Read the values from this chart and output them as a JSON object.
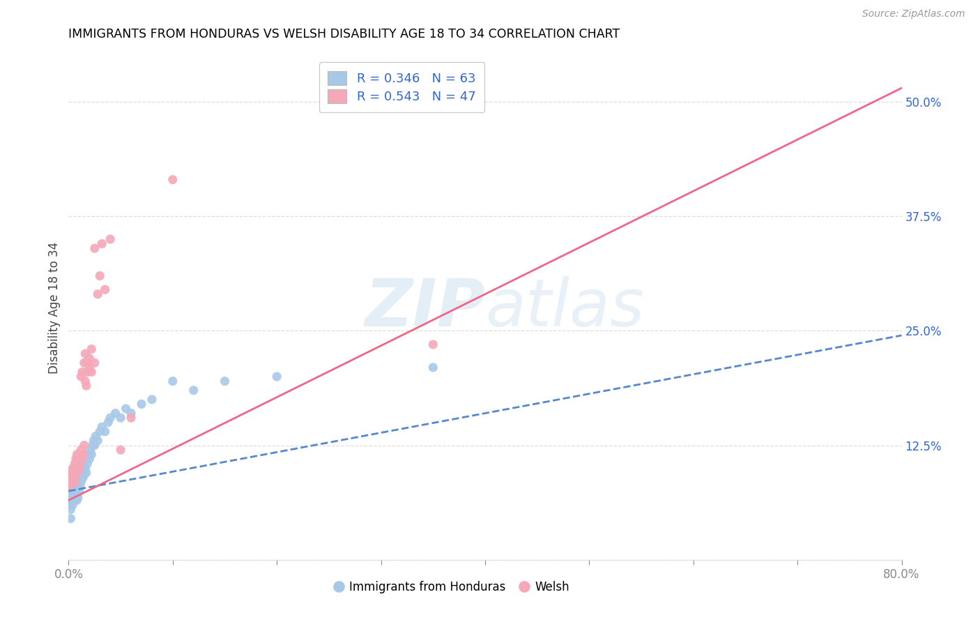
{
  "title": "IMMIGRANTS FROM HONDURAS VS WELSH DISABILITY AGE 18 TO 34 CORRELATION CHART",
  "source": "Source: ZipAtlas.com",
  "ylabel": "Disability Age 18 to 34",
  "xmin": 0.0,
  "xmax": 0.8,
  "ymin": 0.0,
  "ymax": 0.55,
  "ytick_vals": [
    0.0,
    0.125,
    0.25,
    0.375,
    0.5
  ],
  "ytick_labels": [
    "",
    "12.5%",
    "25.0%",
    "37.5%",
    "50.0%"
  ],
  "blue_R": 0.346,
  "blue_N": 63,
  "pink_R": 0.543,
  "pink_N": 47,
  "blue_color": "#a8c8e8",
  "pink_color": "#f4a8b8",
  "blue_line_color": "#5588cc",
  "pink_line_color": "#ee6688",
  "legend_color": "#3366cc",
  "blue_line_x": [
    0.0,
    0.8
  ],
  "blue_line_y": [
    0.075,
    0.245
  ],
  "pink_line_x": [
    0.0,
    0.8
  ],
  "pink_line_y": [
    0.065,
    0.515
  ],
  "blue_scatter_x": [
    0.001,
    0.002,
    0.002,
    0.003,
    0.003,
    0.004,
    0.004,
    0.004,
    0.005,
    0.005,
    0.005,
    0.006,
    0.006,
    0.006,
    0.007,
    0.007,
    0.007,
    0.008,
    0.008,
    0.008,
    0.009,
    0.009,
    0.01,
    0.01,
    0.01,
    0.011,
    0.011,
    0.012,
    0.012,
    0.013,
    0.013,
    0.014,
    0.014,
    0.015,
    0.015,
    0.016,
    0.017,
    0.018,
    0.019,
    0.02,
    0.021,
    0.022,
    0.023,
    0.024,
    0.025,
    0.026,
    0.028,
    0.03,
    0.032,
    0.035,
    0.038,
    0.04,
    0.045,
    0.05,
    0.055,
    0.06,
    0.07,
    0.08,
    0.1,
    0.12,
    0.15,
    0.2,
    0.35
  ],
  "blue_scatter_y": [
    0.06,
    0.045,
    0.055,
    0.065,
    0.07,
    0.06,
    0.075,
    0.085,
    0.07,
    0.075,
    0.08,
    0.065,
    0.08,
    0.09,
    0.07,
    0.075,
    0.09,
    0.065,
    0.08,
    0.095,
    0.068,
    0.085,
    0.075,
    0.082,
    0.095,
    0.08,
    0.1,
    0.085,
    0.095,
    0.09,
    0.105,
    0.09,
    0.1,
    0.095,
    0.11,
    0.1,
    0.095,
    0.105,
    0.115,
    0.11,
    0.12,
    0.115,
    0.125,
    0.13,
    0.125,
    0.135,
    0.13,
    0.14,
    0.145,
    0.14,
    0.15,
    0.155,
    0.16,
    0.155,
    0.165,
    0.16,
    0.17,
    0.175,
    0.195,
    0.185,
    0.195,
    0.2,
    0.21
  ],
  "pink_scatter_x": [
    0.001,
    0.002,
    0.002,
    0.003,
    0.003,
    0.004,
    0.004,
    0.005,
    0.005,
    0.006,
    0.006,
    0.007,
    0.007,
    0.008,
    0.008,
    0.009,
    0.009,
    0.01,
    0.01,
    0.011,
    0.012,
    0.013,
    0.014,
    0.015,
    0.016,
    0.017,
    0.018,
    0.02,
    0.022,
    0.025,
    0.012,
    0.013,
    0.015,
    0.016,
    0.018,
    0.02,
    0.022,
    0.025,
    0.028,
    0.03,
    0.032,
    0.035,
    0.04,
    0.05,
    0.06,
    0.1,
    0.35
  ],
  "pink_scatter_y": [
    0.08,
    0.085,
    0.09,
    0.088,
    0.095,
    0.092,
    0.1,
    0.09,
    0.1,
    0.085,
    0.105,
    0.095,
    0.11,
    0.1,
    0.115,
    0.095,
    0.11,
    0.1,
    0.115,
    0.105,
    0.12,
    0.11,
    0.115,
    0.125,
    0.195,
    0.19,
    0.205,
    0.21,
    0.205,
    0.215,
    0.2,
    0.205,
    0.215,
    0.225,
    0.215,
    0.22,
    0.23,
    0.34,
    0.29,
    0.31,
    0.345,
    0.295,
    0.35,
    0.12,
    0.155,
    0.415,
    0.235
  ]
}
